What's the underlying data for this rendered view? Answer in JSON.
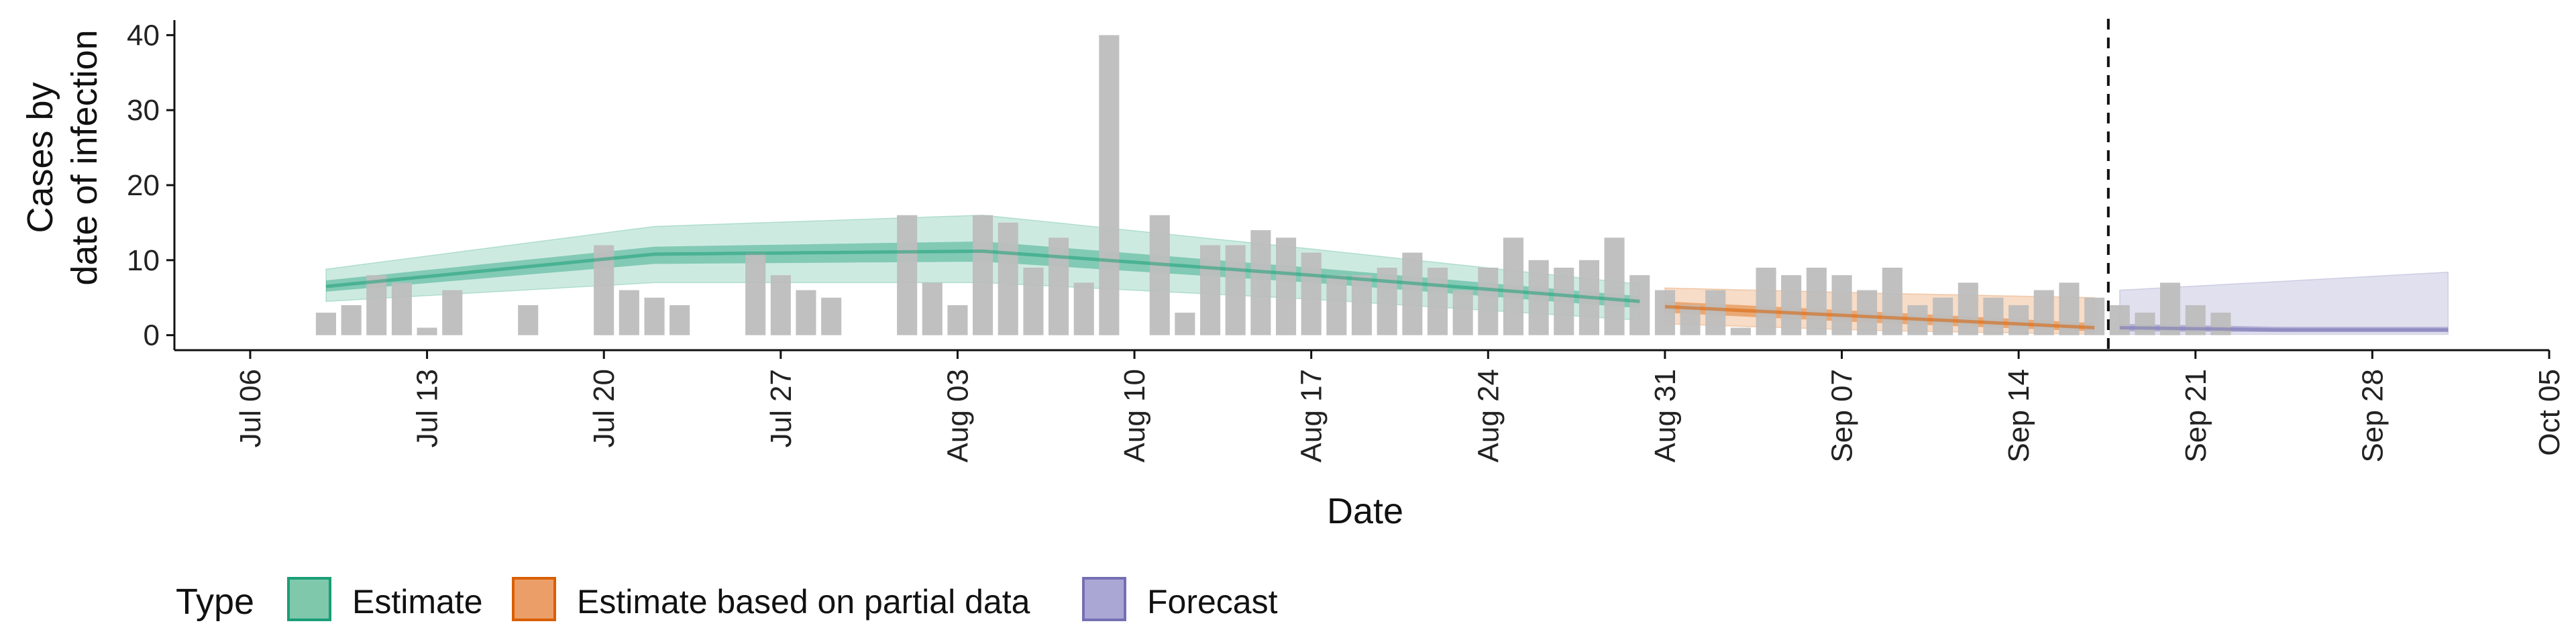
{
  "chart_data": {
    "type": "bar",
    "xlabel": "Date",
    "ylabel_line1": "Cases by",
    "ylabel_line2": "date of infection",
    "x_start": "2020-07-03",
    "x_end": "2020-10-05",
    "xlim": [
      "2020-07-03",
      "2020-10-05"
    ],
    "ylim": [
      -2,
      42
    ],
    "y_ticks": [
      0,
      10,
      20,
      30,
      40
    ],
    "x_ticks": [
      {
        "date": "2020-07-06",
        "label": "Jul 06"
      },
      {
        "date": "2020-07-13",
        "label": "Jul 13"
      },
      {
        "date": "2020-07-20",
        "label": "Jul 20"
      },
      {
        "date": "2020-07-27",
        "label": "Jul 27"
      },
      {
        "date": "2020-08-03",
        "label": "Aug 03"
      },
      {
        "date": "2020-08-10",
        "label": "Aug 10"
      },
      {
        "date": "2020-08-17",
        "label": "Aug 17"
      },
      {
        "date": "2020-08-24",
        "label": "Aug 24"
      },
      {
        "date": "2020-08-31",
        "label": "Aug 31"
      },
      {
        "date": "2020-09-07",
        "label": "Sep 07"
      },
      {
        "date": "2020-09-14",
        "label": "Sep 14"
      },
      {
        "date": "2020-09-21",
        "label": "Sep 21"
      },
      {
        "date": "2020-09-28",
        "label": "Sep 28"
      },
      {
        "date": "2020-10-05",
        "label": "Oct 05"
      }
    ],
    "forecast_start": "2020-09-18",
    "bars_start": "2020-07-09",
    "bars": [
      3,
      4,
      8,
      7,
      1,
      6,
      0,
      0,
      4,
      0,
      0,
      12,
      6,
      5,
      4,
      0,
      0,
      11,
      8,
      6,
      5,
      0,
      0,
      16,
      7,
      4,
      16,
      15,
      9,
      13,
      7,
      40,
      0,
      16,
      3,
      12,
      12,
      14,
      13,
      11,
      8,
      8,
      9,
      11,
      9,
      6,
      9,
      13,
      10,
      9,
      10,
      13,
      8,
      6,
      4,
      6,
      1,
      9,
      8,
      9,
      8,
      6,
      9,
      4,
      5,
      7,
      5,
      4,
      6,
      7,
      5,
      4,
      3,
      7,
      4,
      3
    ],
    "series": [
      {
        "name": "Estimate",
        "color": "#1b9e77",
        "start": "2020-07-09",
        "end": "2020-08-30",
        "median": [
          6.5,
          10.8,
          11.2,
          8.0,
          4.5
        ],
        "inner_lower": [
          5.8,
          9.5,
          9.8,
          7.0,
          3.6
        ],
        "inner_upper": [
          7.3,
          11.8,
          12.5,
          9.0,
          5.2
        ],
        "outer_lower": [
          4.5,
          7.0,
          7.0,
          4.8,
          2.0
        ],
        "outer_upper": [
          8.8,
          14.5,
          16.0,
          11.5,
          6.8
        ]
      },
      {
        "name": "Estimate based on partial data",
        "color": "#d95f02",
        "start": "2020-08-31",
        "end": "2020-09-17",
        "median": [
          3.8,
          2.4,
          1.0
        ],
        "inner_lower": [
          3.0,
          1.6,
          0.5
        ],
        "inner_upper": [
          4.5,
          3.1,
          1.6
        ],
        "outer_lower": [
          1.5,
          0.6,
          0.1
        ],
        "outer_upper": [
          6.3,
          5.6,
          5.0
        ]
      },
      {
        "name": "Forecast",
        "color": "#7570b3",
        "start": "2020-09-18",
        "end": "2020-10-01",
        "median": [
          1.0,
          0.7,
          0.7
        ],
        "inner_lower": [
          0.5,
          0.4,
          0.4
        ],
        "inner_upper": [
          1.5,
          1.1,
          1.1
        ],
        "outer_lower": [
          0.1,
          0.1,
          0.1
        ],
        "outer_upper": [
          6.0,
          7.2,
          8.4
        ]
      }
    ],
    "legend": {
      "title": "Type",
      "position": "bottom",
      "items": [
        {
          "label": "Estimate",
          "fill": "#7fc8ab",
          "stroke": "#1b9e77"
        },
        {
          "label": "Estimate based on partial data",
          "fill": "#ec9e68",
          "stroke": "#d95f02"
        },
        {
          "label": "Forecast",
          "fill": "#aaa7d5",
          "stroke": "#7570b3"
        }
      ]
    },
    "bar_color": "#bdbdbd",
    "grid": false
  }
}
